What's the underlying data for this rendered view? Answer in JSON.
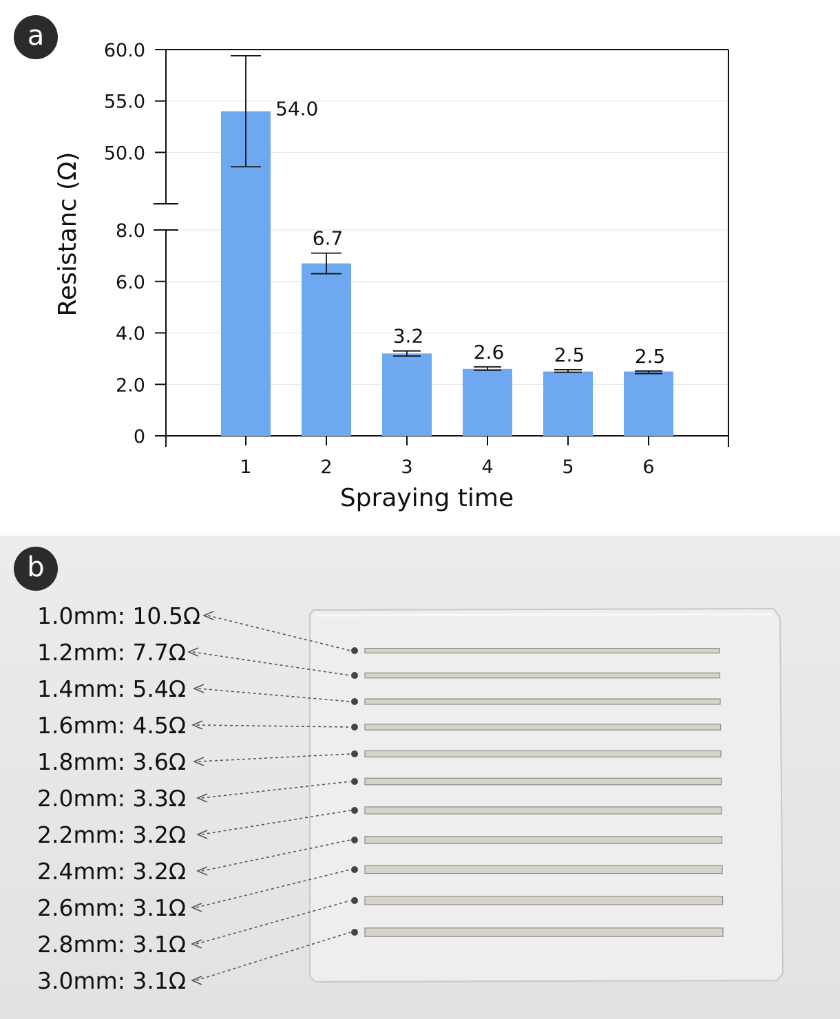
{
  "panels": {
    "a_label": "a",
    "b_label": "b"
  },
  "chart_data": {
    "type": "bar",
    "xlabel": "Spraying time",
    "ylabel": "Resistanc (Ω)",
    "categories": [
      "1",
      "2",
      "3",
      "4",
      "5",
      "6"
    ],
    "values": [
      54.0,
      6.7,
      3.2,
      2.6,
      2.5,
      2.5
    ],
    "data_labels": [
      "54.0",
      "6.7",
      "3.2",
      "2.6",
      "2.5",
      "2.5"
    ],
    "error_bars": [
      [
        48.6,
        59.4
      ],
      [
        6.3,
        7.1
      ],
      [
        3.1,
        3.3
      ],
      [
        2.55,
        2.68
      ],
      [
        2.47,
        2.57
      ],
      [
        2.42,
        2.52
      ]
    ],
    "y_axis_break": true,
    "y_lower_range": [
      0,
      8.0
    ],
    "y_upper_range": [
      45.0,
      60.0
    ],
    "y_lower_ticks": [
      "0",
      "2.0",
      "4.0",
      "6.0",
      "8.0"
    ],
    "y_upper_ticks": [
      "50.0",
      "55.0",
      "60.0"
    ],
    "bar_color": "#6ea8f0",
    "grid": true
  },
  "photo": {
    "description_labels": [
      "1.0mm: 10.5Ω",
      "1.2mm: 7.7Ω",
      "1.4mm: 5.4Ω",
      "1.6mm: 4.5Ω",
      "1.8mm: 3.6Ω",
      "2.0mm: 3.3Ω",
      "2.2mm: 3.2Ω",
      "2.4mm: 3.2Ω",
      "2.6mm: 3.1Ω",
      "2.8mm: 3.1Ω",
      "3.0mm: 3.1Ω"
    ],
    "strip_widths_mm": [
      1.0,
      1.2,
      1.4,
      1.6,
      1.8,
      2.0,
      2.2,
      2.4,
      2.6,
      2.8,
      3.0
    ]
  }
}
